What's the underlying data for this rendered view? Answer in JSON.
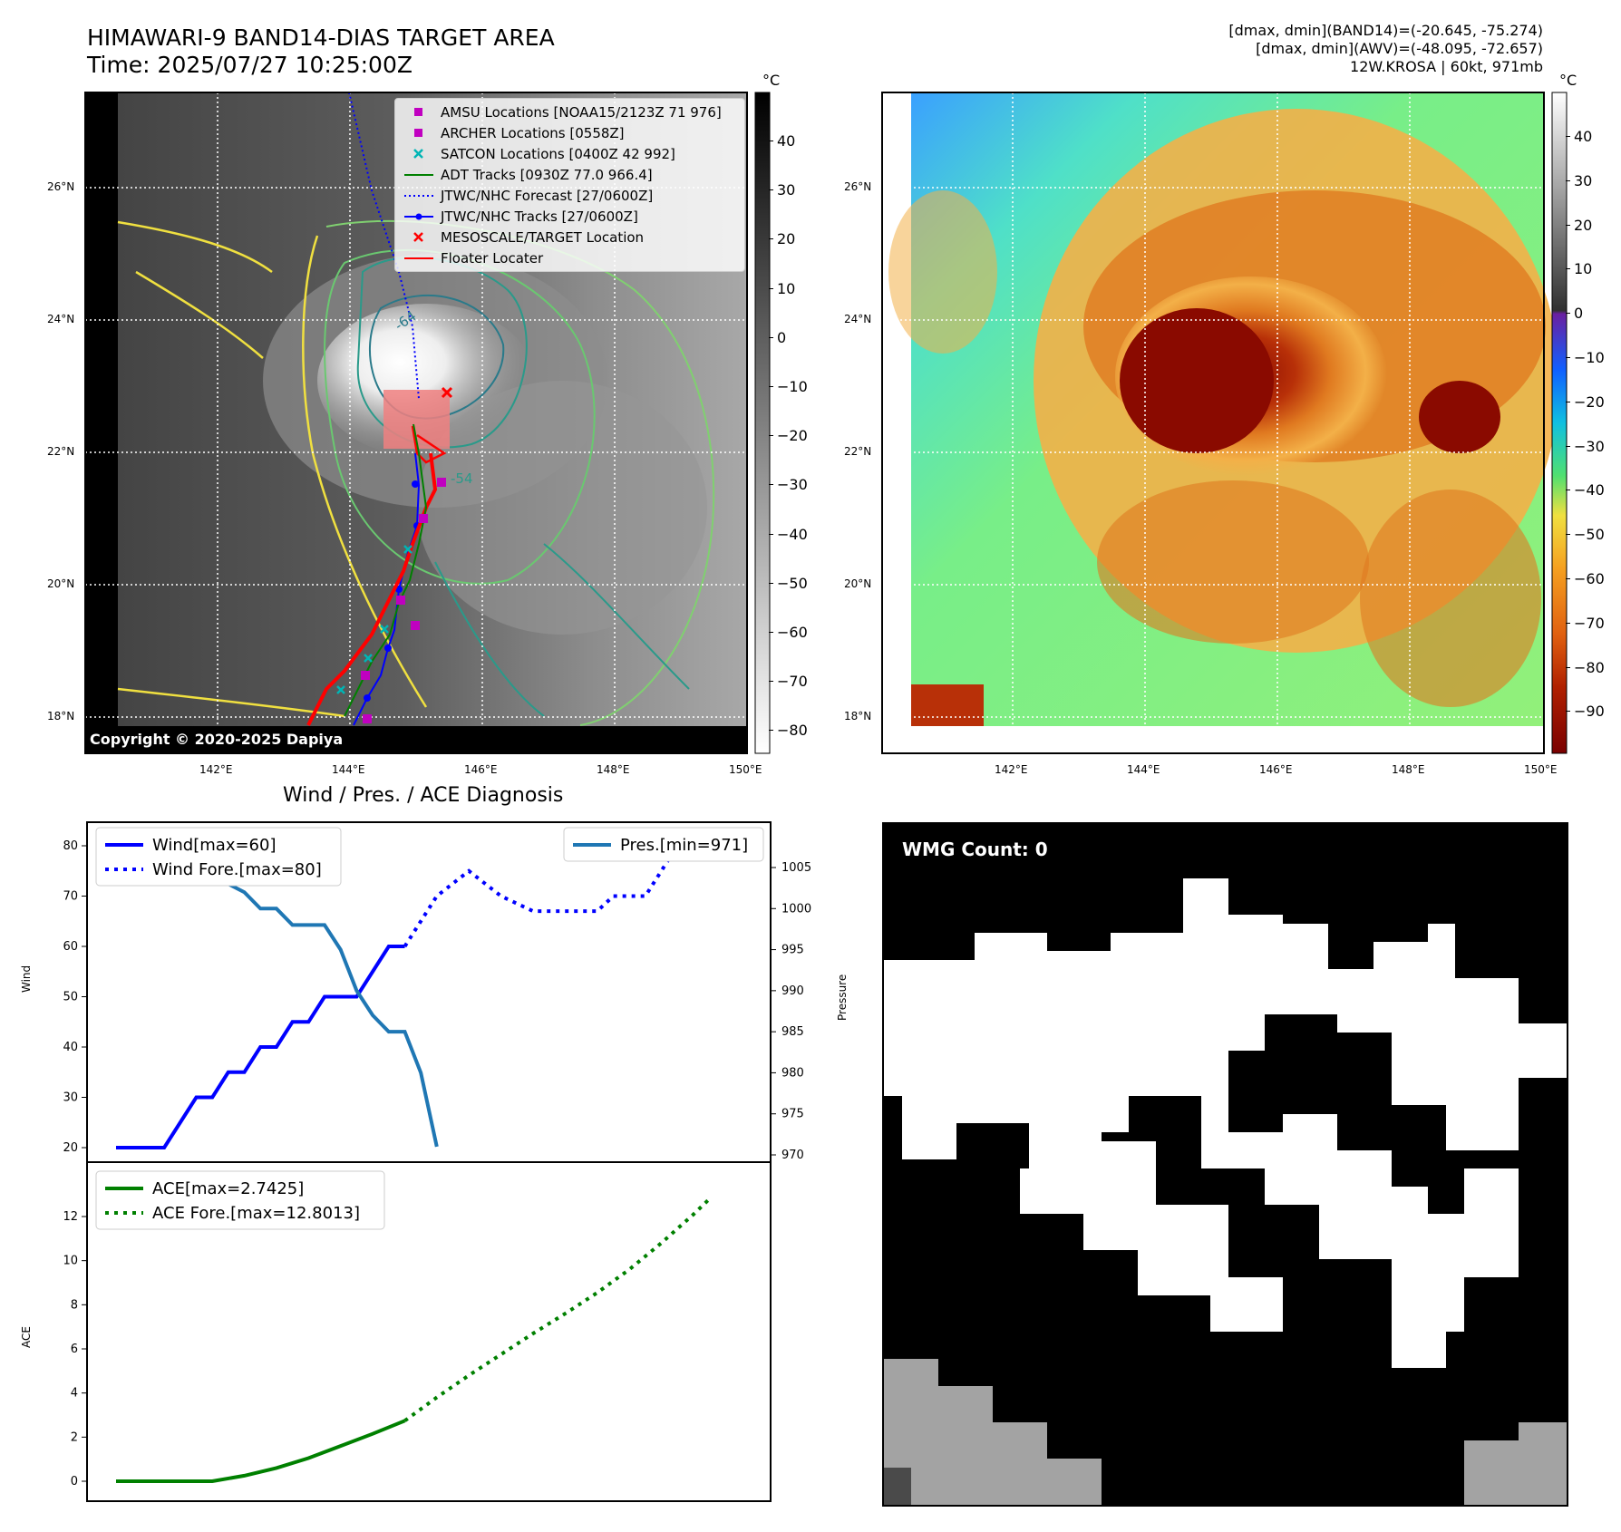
{
  "header": {
    "title_line1": "HIMAWARI-9 BAND14-DIAS TARGET AREA",
    "title_line2": "Time: 2025/07/27 10:25:00Z",
    "info_line1": "[dmax, dmin](BAND14)=(-20.645, -75.274)",
    "info_line2": "[dmax, dmin](AWV)=(-48.095, -72.657)",
    "info_line3": "12W.KROSA | 60kt, 971mb"
  },
  "map": {
    "lat_labels": [
      "26°N",
      "24°N",
      "22°N",
      "20°N",
      "18°N"
    ],
    "lon_labels": [
      "142°E",
      "144°E",
      "146°E",
      "148°E",
      "150°E"
    ],
    "copyright": "Copyright © 2020-2025 Dapiya",
    "contour_labels": [
      "-64",
      "-54"
    ],
    "legend": [
      {
        "label": "AMSU Locations [NOAA15/2123Z 71 976]",
        "color": "#c000c0",
        "marker": "square"
      },
      {
        "label": "ARCHER Locations [0558Z]",
        "color": "#c000c0",
        "marker": "square"
      },
      {
        "label": "SATCON Locations [0400Z 42 992]",
        "color": "#00b5b5",
        "marker": "x"
      },
      {
        "label": "ADT Tracks [0930Z 77.0 966.4]",
        "color": "#008000",
        "marker": "line"
      },
      {
        "label": "JTWC/NHC Forecast [27/0600Z]",
        "color": "#0000ff",
        "marker": "dotted"
      },
      {
        "label": "JTWC/NHC Tracks [27/0600Z]",
        "color": "#0000ff",
        "marker": "line-dot"
      },
      {
        "label": "MESOSCALE/TARGET Location",
        "color": "#ff0000",
        "marker": "x"
      },
      {
        "label": "Floater Locater",
        "color": "#ff0000",
        "marker": "line"
      }
    ]
  },
  "colorbar_left": {
    "unit": "°C",
    "ticks": [
      "40",
      "30",
      "20",
      "10",
      "0",
      "−10",
      "−20",
      "−30",
      "−40",
      "−50",
      "−60",
      "−70",
      "−80"
    ]
  },
  "colorbar_right": {
    "unit": "°C",
    "ticks": [
      "40",
      "30",
      "20",
      "10",
      "0",
      "−10",
      "−20",
      "−30",
      "−40",
      "−50",
      "−60",
      "−70",
      "−80",
      "−90"
    ]
  },
  "diagnosis": {
    "title": "Wind / Pres. / ACE Diagnosis",
    "wind_ylabel": "Wind",
    "pres_ylabel": "Pressure",
    "ace_ylabel": "ACE",
    "wmg_label": "WMG Count: 0"
  },
  "chart_data": [
    {
      "type": "line",
      "title": "Wind / Pres. / ACE Diagnosis",
      "ylabel": "Wind",
      "ylim": [
        18,
        82
      ],
      "yticks": [
        "80",
        "70",
        "60",
        "50",
        "40",
        "30",
        "20"
      ],
      "y2label": "Pressure",
      "y2lim": [
        968,
        1008
      ],
      "y2ticks": [
        "1005",
        "1000",
        "995",
        "990",
        "985",
        "980",
        "975",
        "970"
      ],
      "x": [
        0,
        1,
        2,
        3,
        4,
        5,
        6,
        7,
        8,
        9,
        10,
        11,
        12,
        13,
        14,
        15,
        16,
        17,
        18,
        19,
        20,
        21,
        22,
        23,
        24,
        25,
        26,
        27,
        28,
        29,
        30,
        31,
        32,
        33,
        34,
        35,
        36,
        37,
        38,
        39
      ],
      "series": [
        {
          "name": "Wind[max=60]",
          "axis": "left",
          "style": "solid",
          "color": "#0000ff",
          "points": [
            [
              0,
              20
            ],
            [
              3,
              20
            ],
            [
              5,
              30
            ],
            [
              6,
              30
            ],
            [
              7,
              35
            ],
            [
              8,
              35
            ],
            [
              9,
              40
            ],
            [
              10,
              40
            ],
            [
              11,
              45
            ],
            [
              12,
              45
            ],
            [
              13,
              50
            ],
            [
              15,
              50
            ],
            [
              17,
              60
            ],
            [
              18,
              60
            ]
          ]
        },
        {
          "name": "Wind Fore.[max=80]",
          "axis": "left",
          "style": "dotted",
          "color": "#0000ff",
          "points": [
            [
              18,
              60
            ],
            [
              20,
              70
            ],
            [
              22,
              75
            ],
            [
              24,
              70
            ],
            [
              26,
              67
            ],
            [
              28,
              67
            ],
            [
              30,
              67
            ],
            [
              31,
              70
            ],
            [
              33,
              70
            ],
            [
              35,
              80
            ]
          ]
        },
        {
          "name": "Pres.[min=971]",
          "axis": "right",
          "style": "solid",
          "color": "#1f77b4",
          "points": [
            [
              0,
              1007
            ],
            [
              3,
              1007
            ],
            [
              4,
              1006
            ],
            [
              5,
              1004
            ],
            [
              6,
              1004
            ],
            [
              7,
              1003
            ],
            [
              8,
              1002
            ],
            [
              9,
              1000
            ],
            [
              10,
              1000
            ],
            [
              11,
              998
            ],
            [
              12,
              998
            ],
            [
              13,
              998
            ],
            [
              14,
              995
            ],
            [
              15,
              990
            ],
            [
              16,
              987
            ],
            [
              17,
              985
            ],
            [
              18,
              985
            ],
            [
              19,
              980
            ],
            [
              20,
              971
            ]
          ]
        }
      ]
    },
    {
      "type": "line",
      "ylabel": "ACE",
      "ylim": [
        -0.3,
        13.5
      ],
      "yticks": [
        "12",
        "10",
        "8",
        "6",
        "4",
        "2",
        "0"
      ],
      "series": [
        {
          "name": "ACE[max=2.7425]",
          "style": "solid",
          "color": "#008000",
          "points": [
            [
              0,
              0
            ],
            [
              2,
              0
            ],
            [
              4,
              0
            ],
            [
              6,
              0
            ],
            [
              8,
              0.25
            ],
            [
              10,
              0.6
            ],
            [
              12,
              1.05
            ],
            [
              14,
              1.6
            ],
            [
              16,
              2.15
            ],
            [
              18,
              2.7425
            ]
          ]
        },
        {
          "name": "ACE Fore.[max=12.8013]",
          "style": "dotted",
          "color": "#008000",
          "points": [
            [
              18,
              2.7425
            ],
            [
              20,
              3.8
            ],
            [
              22,
              4.8
            ],
            [
              24,
              5.75
            ],
            [
              26,
              6.7
            ],
            [
              28,
              7.6
            ],
            [
              30,
              8.55
            ],
            [
              32,
              9.6
            ],
            [
              34,
              10.8
            ],
            [
              36,
              12.1
            ],
            [
              37,
              12.8013
            ]
          ]
        }
      ]
    }
  ]
}
